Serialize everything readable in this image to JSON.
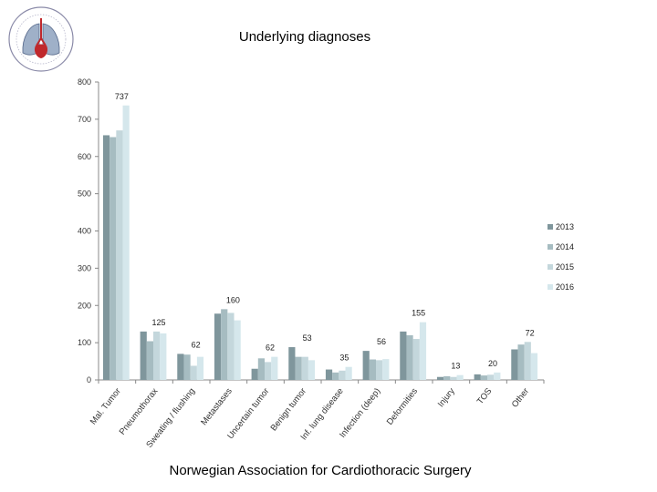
{
  "logo": {
    "org": "Norwegian Association for Cardiothoracic Surgery"
  },
  "footer": {
    "text": "Norwegian Association for Cardiothoracic Surgery"
  },
  "chart_data": {
    "type": "bar",
    "title": "Underlying diagnoses",
    "xlabel": "",
    "ylabel": "",
    "ylim": [
      0,
      800
    ],
    "yticks": [
      0,
      100,
      200,
      300,
      400,
      500,
      600,
      700,
      800
    ],
    "grid": false,
    "legend": "right",
    "categories": [
      "Mal. Tumor",
      "Pneumothorax",
      "Sweating / flushing",
      "Metastases",
      "Uncertain tumor",
      "Benign tumor",
      "Inf. lung disease",
      "Infection (deep)",
      "Deformities",
      "Injury",
      "TOS",
      "Other"
    ],
    "series": [
      {
        "name": "2013",
        "color": "#7f969c",
        "values": [
          657,
          130,
          70,
          178,
          30,
          88,
          28,
          78,
          130,
          8,
          15,
          82
        ]
      },
      {
        "name": "2014",
        "color": "#a6bcc1",
        "values": [
          652,
          104,
          68,
          190,
          58,
          62,
          20,
          55,
          120,
          10,
          12,
          95
        ]
      },
      {
        "name": "2015",
        "color": "#c4d7dc",
        "values": [
          670,
          130,
          38,
          180,
          48,
          62,
          25,
          53,
          110,
          8,
          14,
          102
        ]
      },
      {
        "name": "2016",
        "color": "#d5e7ec",
        "values": [
          737,
          125,
          62,
          160,
          62,
          53,
          35,
          56,
          155,
          13,
          20,
          72
        ]
      }
    ],
    "data_labels": [
      "737",
      "125",
      "62",
      "160",
      "62",
      "53",
      "35",
      "56",
      "155",
      "13",
      "20",
      "72"
    ]
  }
}
